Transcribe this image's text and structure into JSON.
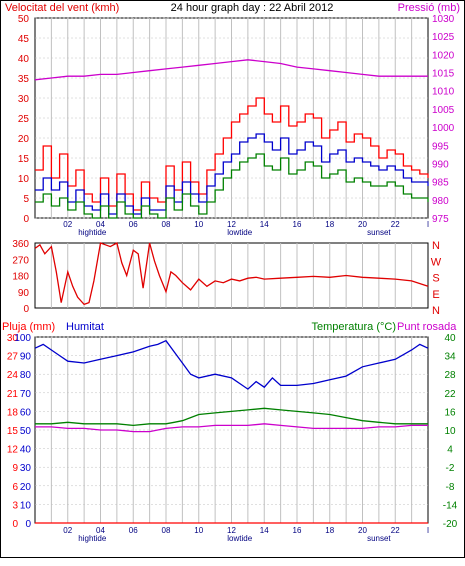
{
  "colors": {
    "wind": "#e00000",
    "gust": "#ff0000",
    "avg": "#0000cc",
    "green": "#008000",
    "pressure": "#cc00cc",
    "humidity": "#0000cc",
    "temperature": "#008000",
    "dewpoint": "#cc00cc",
    "rain": "#ff0000",
    "grid": "#c0c0c0",
    "frame": "#000000"
  },
  "chart_data": [
    {
      "type": "line",
      "title": "24 hour graph day : 22 Abril 2012",
      "ylabel_left": "Velocitat del vent (kmh)",
      "ylabel_right": "Pressió (mb)",
      "ylim_left": [
        0,
        50
      ],
      "ylim_right": [
        975,
        1030
      ],
      "yticks_left": [
        "0",
        "5",
        "10",
        "15",
        "20",
        "25",
        "30",
        "35",
        "40",
        "45",
        "50"
      ],
      "yticks_right": [
        "975",
        "980",
        "985",
        "990",
        "995",
        "1000",
        "1005",
        "1010",
        "1015",
        "1020",
        "1025",
        "1030"
      ],
      "xticks": [
        "02",
        "04",
        "06",
        "08",
        "10",
        "12",
        "14",
        "16",
        "18",
        "20",
        "22"
      ],
      "x_range_hours": [
        0,
        24
      ],
      "markers": [
        "hightide",
        "lowtide",
        "sunset"
      ],
      "end_tick": "l",
      "grid": true,
      "series": [
        {
          "key": "gust",
          "hours": [
            0,
            0.5,
            1,
            1.5,
            2,
            2.5,
            3,
            3.5,
            4,
            4.5,
            5,
            5.5,
            6,
            6.5,
            7,
            7.5,
            8,
            8.5,
            9,
            9.5,
            10,
            10.5,
            11,
            11.5,
            12,
            12.5,
            13,
            13.5,
            14,
            14.5,
            15,
            15.5,
            16,
            16.5,
            17,
            17.5,
            18,
            18.5,
            19,
            19.5,
            20,
            20.5,
            21,
            21.5,
            22,
            22.5,
            23,
            23.5,
            24
          ],
          "values": [
            12,
            18,
            10,
            16,
            8,
            12,
            6,
            4,
            10,
            3,
            11,
            6,
            2,
            9,
            5,
            4,
            13,
            7,
            14,
            9,
            6,
            12,
            16,
            20,
            24,
            26,
            28,
            30,
            26,
            24,
            28,
            23,
            24,
            26,
            25,
            20,
            22,
            24,
            19,
            21,
            20,
            18,
            15,
            17,
            16,
            13,
            12,
            11,
            10
          ]
        },
        {
          "key": "avg",
          "hours": [
            0,
            0.5,
            1,
            1.5,
            2,
            2.5,
            3,
            3.5,
            4,
            4.5,
            5,
            5.5,
            6,
            6.5,
            7,
            7.5,
            8,
            8.5,
            9,
            9.5,
            10,
            10.5,
            11,
            11.5,
            12,
            12.5,
            13,
            13.5,
            14,
            14.5,
            15,
            15.5,
            16,
            16.5,
            17,
            17.5,
            18,
            18.5,
            19,
            19.5,
            20,
            20.5,
            21,
            21.5,
            22,
            22.5,
            23,
            23.5,
            24
          ],
          "values": [
            7,
            10,
            7,
            9,
            4,
            7,
            3,
            2,
            6,
            1,
            6,
            3,
            1,
            5,
            2,
            2,
            8,
            4,
            9,
            6,
            4,
            8,
            11,
            14,
            16,
            19,
            20,
            21,
            19,
            17,
            20,
            16,
            17,
            19,
            18,
            14,
            16,
            17,
            14,
            15,
            14,
            13,
            12,
            13,
            12,
            10,
            9,
            9,
            8
          ]
        },
        {
          "key": "green",
          "hours": [
            0,
            0.5,
            1,
            1.5,
            2,
            2.5,
            3,
            3.5,
            4,
            4.5,
            5,
            5.5,
            6,
            6.5,
            7,
            7.5,
            8,
            8.5,
            9,
            9.5,
            10,
            10.5,
            11,
            11.5,
            12,
            12.5,
            13,
            13.5,
            14,
            14.5,
            15,
            15.5,
            16,
            16.5,
            17,
            17.5,
            18,
            18.5,
            19,
            19.5,
            20,
            20.5,
            21,
            21.5,
            22,
            22.5,
            23,
            23.5,
            24
          ],
          "values": [
            4,
            6,
            3,
            5,
            2,
            4,
            1,
            0,
            3,
            0,
            4,
            1,
            0,
            3,
            1,
            0,
            5,
            2,
            6,
            3,
            1,
            4,
            7,
            10,
            12,
            14,
            15,
            16,
            13,
            12,
            15,
            11,
            12,
            14,
            13,
            10,
            11,
            12,
            9,
            10,
            9,
            8,
            8,
            9,
            8,
            6,
            5,
            5,
            4
          ]
        },
        {
          "key": "pressure",
          "hours": [
            0,
            1,
            2,
            3,
            4,
            5,
            6,
            7,
            8,
            9,
            10,
            11,
            12,
            13,
            14,
            15,
            16,
            17,
            18,
            19,
            20,
            21,
            22,
            23,
            24
          ],
          "values": [
            1013,
            1013.5,
            1014,
            1014,
            1014.5,
            1014.5,
            1015,
            1015.5,
            1016,
            1016.5,
            1017,
            1017.5,
            1018,
            1018.5,
            1018,
            1017.5,
            1016.5,
            1016,
            1015.5,
            1015,
            1014.5,
            1014,
            1014,
            1014,
            1014
          ]
        }
      ]
    },
    {
      "type": "line",
      "ylabel_right": [
        "N",
        "W",
        "S",
        "E",
        "N"
      ],
      "ylim": [
        0,
        360
      ],
      "yticks": [
        "360",
        "270",
        "180",
        "90",
        "0"
      ],
      "grid": true,
      "series": [
        {
          "key": "direction",
          "hours": [
            0,
            0.3,
            0.6,
            1,
            1.3,
            1.6,
            2,
            2.3,
            2.6,
            3,
            3.3,
            3.6,
            4,
            4.3,
            4.6,
            5,
            5.3,
            5.6,
            6,
            6.3,
            6.6,
            7,
            7.3,
            7.6,
            8,
            8.3,
            8.6,
            9,
            9.5,
            10,
            10.5,
            11,
            11.5,
            12,
            12.5,
            13,
            13.5,
            14,
            15,
            16,
            17,
            18,
            19,
            20,
            21,
            22,
            23,
            24
          ],
          "values": [
            330,
            350,
            300,
            340,
            200,
            30,
            200,
            120,
            60,
            20,
            30,
            150,
            360,
            350,
            340,
            360,
            250,
            180,
            320,
            300,
            110,
            360,
            260,
            180,
            90,
            200,
            180,
            140,
            100,
            160,
            120,
            150,
            140,
            160,
            150,
            165,
            170,
            160,
            165,
            170,
            175,
            170,
            180,
            170,
            165,
            160,
            150,
            120
          ]
        }
      ]
    },
    {
      "type": "line",
      "ylabel_left": "Pluja (mm)",
      "ylabel_left2": "Humitat",
      "ylabel_right": "Temperatura (°C)",
      "ylabel_right2": "Punt rosada",
      "ylim_humidity": [
        0,
        100
      ],
      "ylim_temperature": [
        -20,
        40
      ],
      "ylim_rain": [
        0,
        30
      ],
      "yticks_humidity": [
        "0",
        "10",
        "20",
        "30",
        "40",
        "50",
        "60",
        "70",
        "80",
        "90",
        "100"
      ],
      "yticks_rain": [
        "0",
        "3",
        "6",
        "9",
        "12",
        "15",
        "18",
        "21",
        "24",
        "27",
        "30"
      ],
      "yticks_temperature": [
        "-20",
        "-14",
        "-8",
        "-2",
        "4",
        "10",
        "16",
        "22",
        "28",
        "34",
        "40"
      ],
      "xticks": [
        "02",
        "04",
        "06",
        "08",
        "10",
        "12",
        "14",
        "16",
        "18",
        "20",
        "22"
      ],
      "markers": [
        "hightide",
        "lowtide",
        "sunset"
      ],
      "end_tick": "l",
      "grid": true,
      "series": [
        {
          "key": "humidity",
          "hours": [
            0,
            0.5,
            1,
            1.5,
            2,
            3,
            4,
            5,
            6,
            7,
            7.5,
            8,
            8.5,
            9,
            9.5,
            10,
            11,
            12,
            12.5,
            13,
            13.5,
            14,
            14.5,
            15,
            16,
            17,
            18,
            19,
            20,
            21,
            22,
            23,
            23.5,
            24
          ],
          "values": [
            94,
            96,
            93,
            90,
            87,
            86,
            88,
            90,
            92,
            95,
            96,
            98,
            92,
            86,
            80,
            78,
            80,
            78,
            75,
            72,
            76,
            73,
            78,
            74,
            74,
            75,
            77,
            79,
            84,
            86,
            88,
            93,
            96,
            94
          ]
        },
        {
          "key": "temperature",
          "hours": [
            0,
            1,
            2,
            3,
            4,
            5,
            6,
            7,
            8,
            8.5,
            9,
            9.5,
            10,
            11,
            12,
            13,
            14,
            15,
            16,
            17,
            18,
            19,
            20,
            21,
            22,
            23,
            24
          ],
          "values": [
            12,
            12,
            12.5,
            12,
            12,
            12,
            11.5,
            12,
            12,
            12.5,
            13,
            14,
            15,
            15.5,
            16,
            16.5,
            17,
            16.5,
            16,
            15.5,
            15,
            14,
            13,
            12.5,
            12,
            12,
            12
          ]
        },
        {
          "key": "dewpoint",
          "hours": [
            0,
            1,
            2,
            3,
            4,
            5,
            6,
            7,
            8,
            9,
            10,
            11,
            12,
            13,
            14,
            15,
            16,
            17,
            18,
            19,
            20,
            21,
            22,
            23,
            24
          ],
          "values": [
            11,
            11,
            10.5,
            10.5,
            10,
            10,
            9.5,
            9.5,
            10.5,
            11,
            11,
            11.5,
            11.5,
            11.5,
            12,
            11.5,
            11,
            10.5,
            10.5,
            10.5,
            10.5,
            11,
            11,
            11.5,
            11.5
          ]
        },
        {
          "key": "rain",
          "hours": [
            0,
            24
          ],
          "values": [
            0,
            0
          ]
        }
      ]
    }
  ]
}
